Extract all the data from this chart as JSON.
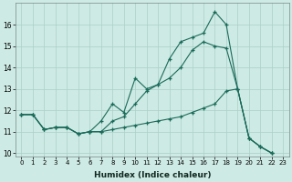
{
  "xlabel": "Humidex (Indice chaleur)",
  "background_color": "#ceeae4",
  "grid_color": "#aacfc8",
  "line_color": "#1a6b5a",
  "x_values": [
    0,
    1,
    2,
    3,
    4,
    5,
    6,
    7,
    8,
    9,
    10,
    11,
    12,
    13,
    14,
    15,
    16,
    17,
    18,
    19,
    20,
    21,
    22,
    23
  ],
  "line_upper": [
    11.8,
    11.8,
    11.1,
    11.2,
    11.2,
    10.9,
    11.0,
    11.0,
    11.5,
    11.7,
    12.3,
    12.9,
    13.2,
    14.4,
    15.2,
    15.4,
    15.6,
    16.6,
    16.0,
    13.0,
    10.7,
    10.3,
    10.0,
    null
  ],
  "line_mid": [
    11.8,
    11.8,
    11.1,
    11.2,
    11.2,
    10.9,
    11.0,
    11.5,
    12.3,
    11.9,
    13.5,
    13.0,
    13.2,
    13.5,
    14.0,
    14.8,
    15.2,
    15.0,
    14.9,
    13.0,
    10.7,
    10.3,
    10.0,
    null
  ],
  "line_lower": [
    11.8,
    11.8,
    11.1,
    11.2,
    11.2,
    10.9,
    11.0,
    11.0,
    11.1,
    11.2,
    11.3,
    11.4,
    11.5,
    11.6,
    11.7,
    11.9,
    12.1,
    12.3,
    12.9,
    13.0,
    10.7,
    10.3,
    10.0,
    null
  ],
  "xlim": [
    -0.5,
    23.5
  ],
  "ylim": [
    9.85,
    17.0
  ],
  "yticks": [
    10,
    11,
    12,
    13,
    14,
    15,
    16
  ],
  "xticks": [
    0,
    1,
    2,
    3,
    4,
    5,
    6,
    7,
    8,
    9,
    10,
    11,
    12,
    13,
    14,
    15,
    16,
    17,
    18,
    19,
    20,
    21,
    22,
    23
  ],
  "tick_fontsize": 5.0,
  "xlabel_fontsize": 6.5
}
